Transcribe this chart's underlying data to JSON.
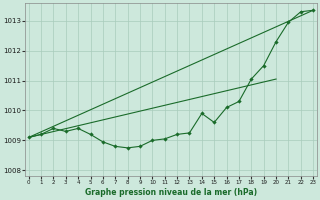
{
  "title": "Graphe pression niveau de la mer (hPa)",
  "background_color": "#cde8dc",
  "grid_color": "#a8ccbc",
  "line_color": "#1a6b2a",
  "x_ticks": [
    0,
    1,
    2,
    3,
    4,
    5,
    6,
    7,
    8,
    9,
    10,
    11,
    12,
    13,
    14,
    15,
    16,
    17,
    18,
    19,
    20,
    21,
    22,
    23
  ],
  "ylim": [
    1007.8,
    1013.6
  ],
  "yticks": [
    1008,
    1009,
    1010,
    1011,
    1012,
    1013
  ],
  "straight_line1": [
    [
      0,
      23
    ],
    [
      1009.1,
      1013.35
    ]
  ],
  "straight_line2": [
    [
      0,
      20
    ],
    [
      1009.1,
      1011.05
    ]
  ],
  "main_x": [
    0,
    1,
    2,
    3,
    4,
    5,
    6,
    7,
    8,
    9,
    10,
    11,
    12,
    13,
    14,
    15,
    16,
    17,
    18,
    19,
    20,
    21,
    22,
    23
  ],
  "main_y": [
    1009.1,
    1009.2,
    1009.4,
    1009.3,
    1009.4,
    1009.2,
    1008.95,
    1008.8,
    1008.75,
    1008.8,
    1009.0,
    1009.05,
    1009.2,
    1009.25,
    1009.9,
    1009.6,
    1010.1,
    1010.3,
    1011.05,
    1011.5,
    1012.3,
    1012.95,
    1013.3,
    1013.35
  ]
}
